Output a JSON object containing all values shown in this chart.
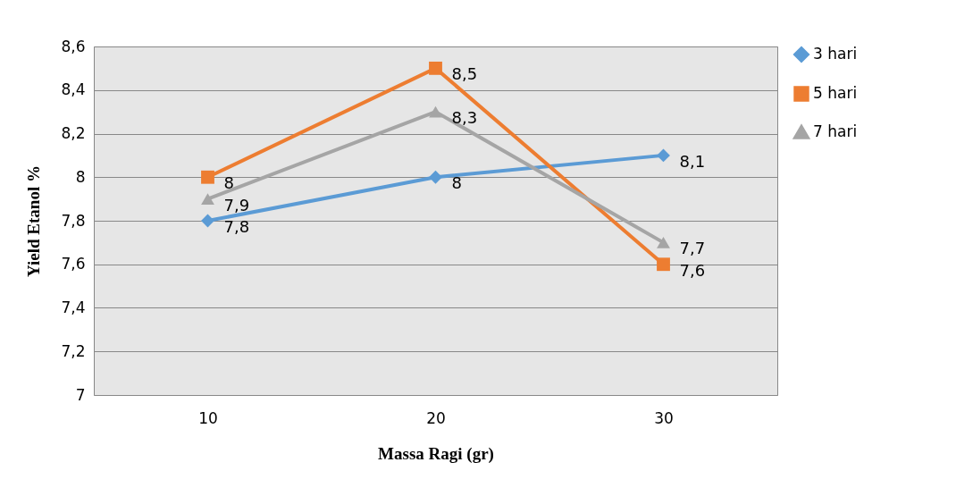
{
  "chart_data": {
    "type": "line",
    "xlabel": "Massa Ragi (gr)",
    "ylabel": "Yield Etanol %",
    "categories": [
      "10",
      "20",
      "30"
    ],
    "series": [
      {
        "name": "3 hari",
        "color": "#5b9bd5",
        "marker": "diamond",
        "values": [
          7.8,
          8,
          8.1
        ],
        "value_labels": [
          "7,8",
          "8",
          "8,1"
        ]
      },
      {
        "name": "5 hari",
        "color": "#ed7d31",
        "marker": "square",
        "values": [
          8,
          8.5,
          7.6
        ],
        "value_labels": [
          "8",
          "8,5",
          "7,6"
        ]
      },
      {
        "name": "7 hari",
        "color": "#a5a5a5",
        "marker": "triangle",
        "values": [
          7.9,
          8.3,
          7.7
        ],
        "value_labels": [
          "7,9",
          "8,3",
          "7,7"
        ]
      }
    ],
    "ylim": [
      7,
      8.6
    ],
    "yticks": [
      7,
      {
        "value": 7.2,
        "label": "7,2"
      },
      {
        "value": 7.4,
        "label": "7,4"
      },
      {
        "value": 7.6,
        "label": "7,6"
      },
      {
        "value": 7.8,
        "label": "7,8"
      },
      8,
      {
        "value": 8.2,
        "label": "8,2"
      },
      {
        "value": 8.4,
        "label": "8,4"
      },
      {
        "value": 8.6,
        "label": "8,6"
      }
    ],
    "grid": "y",
    "legend": "right",
    "line_style": "solid"
  }
}
